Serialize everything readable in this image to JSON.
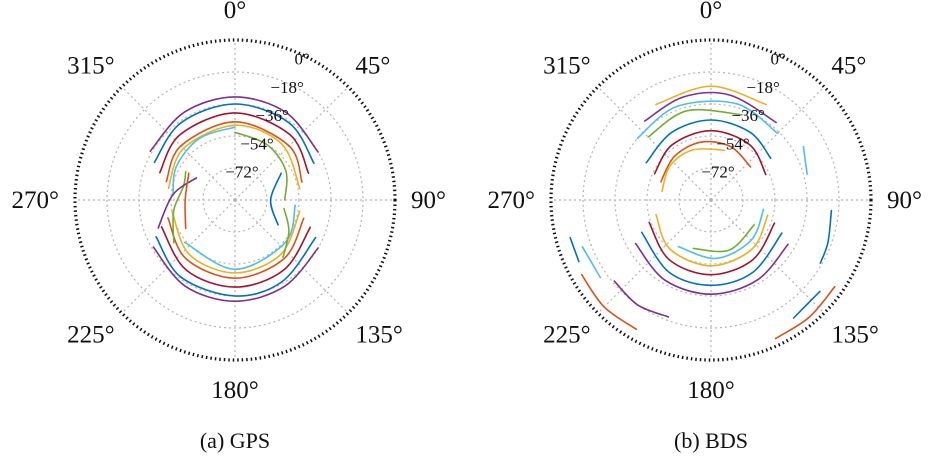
{
  "colors": {
    "series": [
      "#0072BD",
      "#D95319",
      "#EDB120",
      "#7E2F8E",
      "#77AC30",
      "#4DBEEE",
      "#A2142F"
    ],
    "grid": "#b5b5b5",
    "frame": "#111111"
  },
  "chart_data": [
    {
      "type": "polar-skyplot",
      "caption": "(a) GPS",
      "azimuth_labels": [
        "0°",
        "45°",
        "90°",
        "135°",
        "180°",
        "225°",
        "270°",
        "315°"
      ],
      "azimuth_values": [
        0,
        45,
        90,
        135,
        180,
        225,
        270,
        315
      ],
      "elevation_labels": [
        "0°",
        "−18°",
        "−36°",
        "−54°",
        "−72°"
      ],
      "elevation_values": [
        0,
        -18,
        -36,
        -54,
        -72
      ],
      "radial_range": [
        -90,
        0
      ],
      "grid": true,
      "tracks": [
        {
          "color": 3,
          "az": [
            300,
            330,
            0,
            30,
            60
          ],
          "el": [
            -35,
            -33,
            -32,
            -33,
            -36
          ]
        },
        {
          "color": 0,
          "az": [
            295,
            325,
            0,
            35,
            65
          ],
          "el": [
            -40,
            -37,
            -36,
            -37,
            -41
          ]
        },
        {
          "color": 6,
          "az": [
            290,
            320,
            0,
            40,
            70
          ],
          "el": [
            -45,
            -42,
            -41,
            -42,
            -46
          ]
        },
        {
          "color": 1,
          "az": [
            285,
            315,
            0,
            45,
            75
          ],
          "el": [
            -50,
            -47,
            -46,
            -47,
            -51
          ]
        },
        {
          "color": 2,
          "az": [
            280,
            315,
            0,
            40,
            80
          ],
          "el": [
            -52,
            -49,
            -48,
            -49,
            -53
          ]
        },
        {
          "color": 5,
          "az": [
            275,
            300,
            330,
            0
          ],
          "el": [
            -55,
            -52,
            -50,
            -49
          ]
        },
        {
          "color": 4,
          "az": [
            0,
            30,
            60,
            90
          ],
          "el": [
            -52,
            -54,
            -57,
            -62
          ]
        },
        {
          "color": 3,
          "az": [
            120,
            150,
            180,
            210,
            240
          ],
          "el": [
            -36,
            -34,
            -33,
            -34,
            -37
          ]
        },
        {
          "color": 0,
          "az": [
            115,
            150,
            180,
            215,
            245
          ],
          "el": [
            -40,
            -37,
            -36,
            -37,
            -41
          ]
        },
        {
          "color": 6,
          "az": [
            110,
            145,
            180,
            215,
            250
          ],
          "el": [
            -45,
            -42,
            -41,
            -42,
            -46
          ]
        },
        {
          "color": 1,
          "az": [
            105,
            140,
            180,
            220,
            255
          ],
          "el": [
            -50,
            -47,
            -46,
            -47,
            -51
          ]
        },
        {
          "color": 2,
          "az": [
            100,
            140,
            180,
            220,
            260
          ],
          "el": [
            -53,
            -50,
            -49,
            -50,
            -54
          ]
        },
        {
          "color": 5,
          "az": [
            95,
            130,
            180,
            230
          ],
          "el": [
            -56,
            -53,
            -51,
            -53
          ]
        },
        {
          "color": 4,
          "az": [
            235,
            260,
            285,
            300
          ],
          "el": [
            -48,
            -55,
            -60,
            -58
          ]
        },
        {
          "color": 3,
          "az": [
            250,
            275,
            300
          ],
          "el": [
            -44,
            -55,
            -65
          ]
        },
        {
          "color": 0,
          "az": [
            60,
            90,
            120
          ],
          "el": [
            -60,
            -70,
            -62
          ]
        },
        {
          "color": 1,
          "az": [
            240,
            270,
            300
          ],
          "el": [
            -58,
            -62,
            -60
          ]
        },
        {
          "color": 4,
          "az": [
            100,
            120,
            140
          ],
          "el": [
            -62,
            -55,
            -48
          ]
        }
      ]
    },
    {
      "type": "polar-skyplot",
      "caption": "(b) BDS",
      "azimuth_labels": [
        "0°",
        "45°",
        "90°",
        "135°",
        "180°",
        "225°",
        "270°",
        "315°"
      ],
      "azimuth_values": [
        0,
        45,
        90,
        135,
        180,
        225,
        270,
        315
      ],
      "elevation_labels": [
        "0°",
        "−18°",
        "−36°",
        "−54°",
        "−72°"
      ],
      "elevation_values": [
        0,
        -18,
        -36,
        -54,
        -72
      ],
      "radial_range": [
        -90,
        0
      ],
      "grid": true,
      "tracks": [
        {
          "color": 2,
          "az": [
            330,
            0,
            30
          ],
          "el": [
            -28,
            -26,
            -28
          ]
        },
        {
          "color": 3,
          "az": [
            320,
            345,
            10,
            40
          ],
          "el": [
            -32,
            -30,
            -30,
            -33
          ]
        },
        {
          "color": 5,
          "az": [
            310,
            340,
            15,
            45
          ],
          "el": [
            -36,
            -34,
            -34,
            -37
          ]
        },
        {
          "color": 4,
          "az": [
            315,
            345,
            20
          ],
          "el": [
            -40,
            -38,
            -39
          ]
        },
        {
          "color": 0,
          "az": [
            300,
            330,
            0,
            30,
            55
          ],
          "el": [
            -48,
            -46,
            -45,
            -46,
            -49
          ]
        },
        {
          "color": 6,
          "az": [
            295,
            325,
            0,
            35,
            65
          ],
          "el": [
            -55,
            -52,
            -51,
            -52,
            -56
          ]
        },
        {
          "color": 1,
          "az": [
            290,
            320,
            350,
            20,
            50
          ],
          "el": [
            -60,
            -58,
            -57,
            -58,
            -61
          ]
        },
        {
          "color": 2,
          "az": [
            280,
            310,
            340,
            15
          ],
          "el": [
            -62,
            -60,
            -60,
            -61
          ]
        },
        {
          "color": 3,
          "az": [
            120,
            150,
            180,
            210,
            240
          ],
          "el": [
            -40,
            -38,
            -37,
            -38,
            -41
          ]
        },
        {
          "color": 0,
          "az": [
            115,
            150,
            180,
            210,
            245
          ],
          "el": [
            -46,
            -43,
            -42,
            -43,
            -47
          ]
        },
        {
          "color": 6,
          "az": [
            110,
            145,
            180,
            215,
            250
          ],
          "el": [
            -52,
            -49,
            -48,
            -49,
            -53
          ]
        },
        {
          "color": 2,
          "az": [
            105,
            140,
            180,
            220,
            255
          ],
          "el": [
            -57,
            -54,
            -53,
            -54,
            -58
          ]
        },
        {
          "color": 5,
          "az": [
            100,
            135,
            175,
            215
          ],
          "el": [
            -60,
            -58,
            -57,
            -58
          ]
        },
        {
          "color": 4,
          "az": [
            120,
            160,
            200
          ],
          "el": [
            -62,
            -60,
            -61
          ]
        },
        {
          "color": 1,
          "az": [
            125,
            140,
            155
          ],
          "el": [
            -5,
            -4,
            -4
          ]
        },
        {
          "color": 0,
          "az": [
            130,
            145
          ],
          "el": [
            -10,
            -9
          ]
        },
        {
          "color": 1,
          "az": [
            210,
            225,
            240
          ],
          "el": [
            -6,
            -5,
            -6
          ]
        },
        {
          "color": 5,
          "az": [
            235,
            250
          ],
          "el": [
            -14,
            -13
          ]
        },
        {
          "color": 0,
          "az": [
            245,
            255
          ],
          "el": [
            -8,
            -8
          ]
        },
        {
          "color": 3,
          "az": [
            200,
            215,
            230
          ],
          "el": [
            -20,
            -18,
            -19
          ]
        },
        {
          "color": 5,
          "az": [
            60,
            75
          ],
          "el": [
            -30,
            -34
          ]
        },
        {
          "color": 0,
          "az": [
            95,
            110,
            120
          ],
          "el": [
            -22,
            -20,
            -19
          ]
        }
      ]
    }
  ]
}
